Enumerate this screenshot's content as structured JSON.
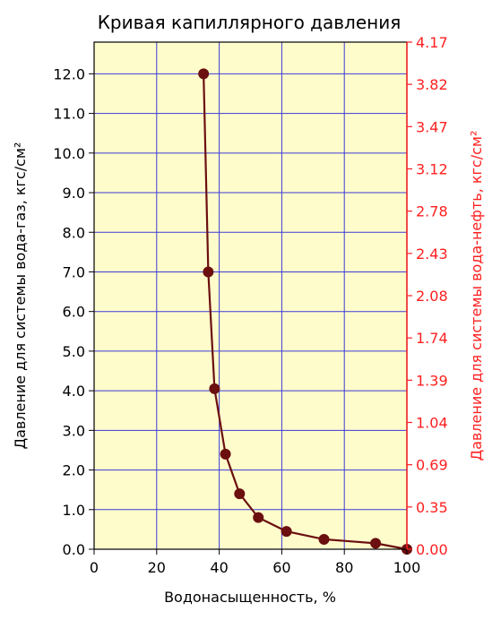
{
  "chart_data": {
    "type": "line",
    "title": "Кривая капиллярного давления",
    "xlabel": "Водонасыщенность, %",
    "ylabel": "Давление для системы вода-газ, кгс/см²",
    "ylabel_right": "Давление для системы вода-нефть, кгс/см²",
    "xlim": [
      0,
      100
    ],
    "ylim": [
      0,
      12.8
    ],
    "ylim_right": [
      0,
      4.17
    ],
    "x_ticks": [
      "0",
      "20",
      "40",
      "60",
      "80",
      "100"
    ],
    "x_tick_values": [
      0,
      20,
      40,
      60,
      80,
      100
    ],
    "y_ticks": [
      "0.0",
      "1.0",
      "2.0",
      "3.0",
      "4.0",
      "5.0",
      "6.0",
      "7.0",
      "8.0",
      "9.0",
      "10.0",
      "11.0",
      "12.0"
    ],
    "y_tick_values": [
      0,
      1,
      2,
      3,
      4,
      5,
      6,
      7,
      8,
      9,
      10,
      11,
      12
    ],
    "y_right_ticks": [
      "0.00",
      "0.35",
      "0.69",
      "1.04",
      "1.39",
      "1.74",
      "2.08",
      "2.43",
      "2.78",
      "3.12",
      "3.47",
      "3.82",
      "4.17"
    ],
    "grid": true,
    "series": [
      {
        "x": [
          35,
          36.5,
          38.5,
          42,
          46.5,
          52.5,
          61.5,
          73.5,
          90,
          100
        ],
        "y": [
          12.0,
          7.0,
          4.05,
          2.4,
          1.4,
          0.8,
          0.45,
          0.25,
          0.15,
          0.0
        ]
      }
    ],
    "colors": {
      "plot_background": "#fffccc",
      "grid": "#3b3bd6",
      "line": "#6b0f0f",
      "marker": "#6b0f0f",
      "right_axis": "#ff2020",
      "axes": "#000000"
    }
  }
}
